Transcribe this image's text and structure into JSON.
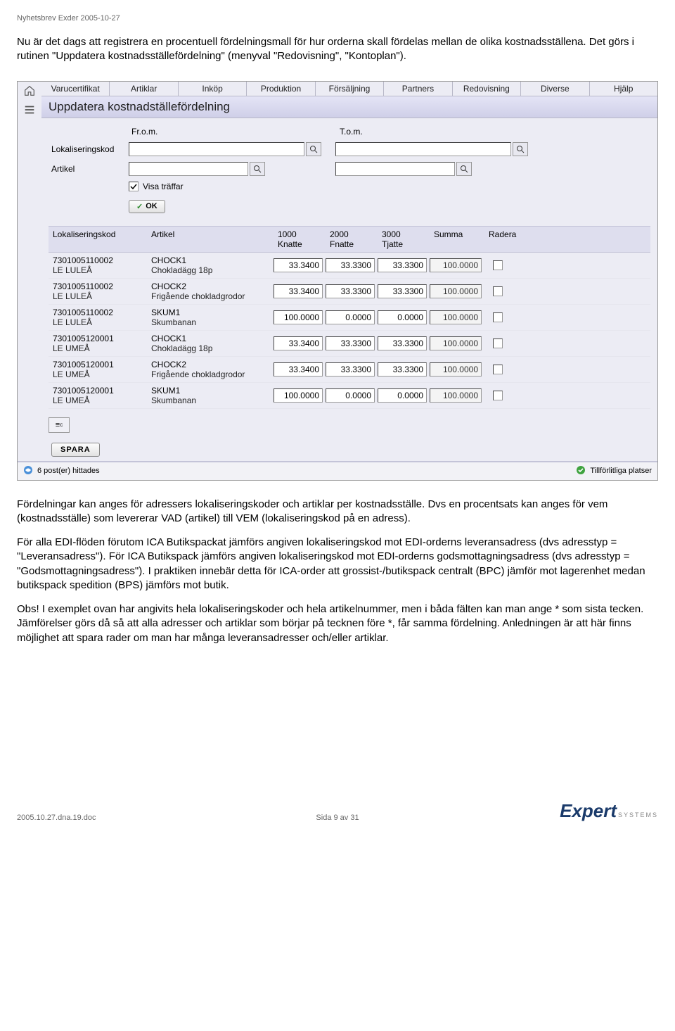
{
  "header_top": "Nyhetsbrev Exder 2005-10-27",
  "intro_p1": "Nu är det dags att registrera en procentuell fördelningsmall för hur orderna skall fördelas mellan de olika kostnadsställena. Det görs i rutinen \"Uppdatera kostnadsställefördelning\" (menyval \"Redovisning\", \"Kontoplan\").",
  "menu": [
    "Varucertifikat",
    "Artiklar",
    "Inköp",
    "Produktion",
    "Försäljning",
    "Partners",
    "Redovisning",
    "Diverse",
    "Hjälp"
  ],
  "title": "Uppdatera kostnadställefördelning",
  "form": {
    "from_lbl": "Fr.o.m.",
    "tom_lbl": "T.o.m.",
    "lok_lbl": "Lokaliseringskod",
    "art_lbl": "Artikel",
    "visa_lbl": "Visa träffar",
    "ok_lbl": "OK"
  },
  "cols": {
    "kod": "Lokaliseringskod",
    "art": "Artikel",
    "c1a": "1000",
    "c1b": "Knatte",
    "c2a": "2000",
    "c2b": "Fnatte",
    "c3a": "3000",
    "c3b": "Tjatte",
    "sum": "Summa",
    "del": "Radera"
  },
  "rows": [
    {
      "kod": "7301005110002",
      "kod2": "LE LULEÅ",
      "art": "CHOCK1",
      "art2": "Chokladägg 18p",
      "v1": "33.3400",
      "v2": "33.3300",
      "v3": "33.3300",
      "sum": "100.0000"
    },
    {
      "kod": "7301005110002",
      "kod2": "LE LULEÅ",
      "art": "CHOCK2",
      "art2": "Frigående chokladgrodor",
      "v1": "33.3400",
      "v2": "33.3300",
      "v3": "33.3300",
      "sum": "100.0000"
    },
    {
      "kod": "7301005110002",
      "kod2": "LE LULEÅ",
      "art": "SKUM1",
      "art2": "Skumbanan",
      "v1": "100.0000",
      "v2": "0.0000",
      "v3": "0.0000",
      "sum": "100.0000"
    },
    {
      "kod": "7301005120001",
      "kod2": "LE UMEÅ",
      "art": "CHOCK1",
      "art2": "Chokladägg 18p",
      "v1": "33.3400",
      "v2": "33.3300",
      "v3": "33.3300",
      "sum": "100.0000"
    },
    {
      "kod": "7301005120001",
      "kod2": "LE UMEÅ",
      "art": "CHOCK2",
      "art2": "Frigående chokladgrodor",
      "v1": "33.3400",
      "v2": "33.3300",
      "v3": "33.3300",
      "sum": "100.0000"
    },
    {
      "kod": "7301005120001",
      "kod2": "LE UMEÅ",
      "art": "SKUM1",
      "art2": "Skumbanan",
      "v1": "100.0000",
      "v2": "0.0000",
      "v3": "0.0000",
      "sum": "100.0000"
    }
  ],
  "save_lbl": "SPARA",
  "status_left": "6 post(er) hittades",
  "status_right": "Tillförlitliga platser",
  "body_p1": "Fördelningar kan anges för adressers lokaliseringskoder och artiklar per kostnadsställe. Dvs en procentsats kan anges för vem (kostnadsställe) som levererar VAD (artikel) till VEM (lokaliseringskod på en adress).",
  "body_p2": "För alla EDI-flöden förutom ICA Butikspackat jämförs angiven lokaliseringskod mot EDI-orderns leveransadress (dvs adresstyp = \"Leveransadress\"). För ICA Butikspack jämförs angiven lokaliseringskod mot EDI-orderns godsmottagningsadress (dvs adresstyp = \"Godsmottagningsadress\"). I praktiken innebär detta för ICA-order att grossist-/butikspack centralt (BPC) jämför mot lagerenhet medan butikspack spedition (BPS) jämförs mot butik.",
  "body_p3": "Obs! I exemplet ovan har angivits hela lokaliseringskoder och hela artikelnummer, men i båda fälten kan man ange * som sista tecken. Jämförelser görs då så att alla adresser och artiklar som börjar på tecknen före *, får samma fördelning. Anledningen är att här finns möjlighet att spara rader om man har många leveransadresser och/eller artiklar.",
  "footer_left": "2005.10.27.dna.19.doc",
  "footer_center": "Sida 9 av 31",
  "logo_main": "Expert",
  "logo_sub": "SYSTEMS"
}
